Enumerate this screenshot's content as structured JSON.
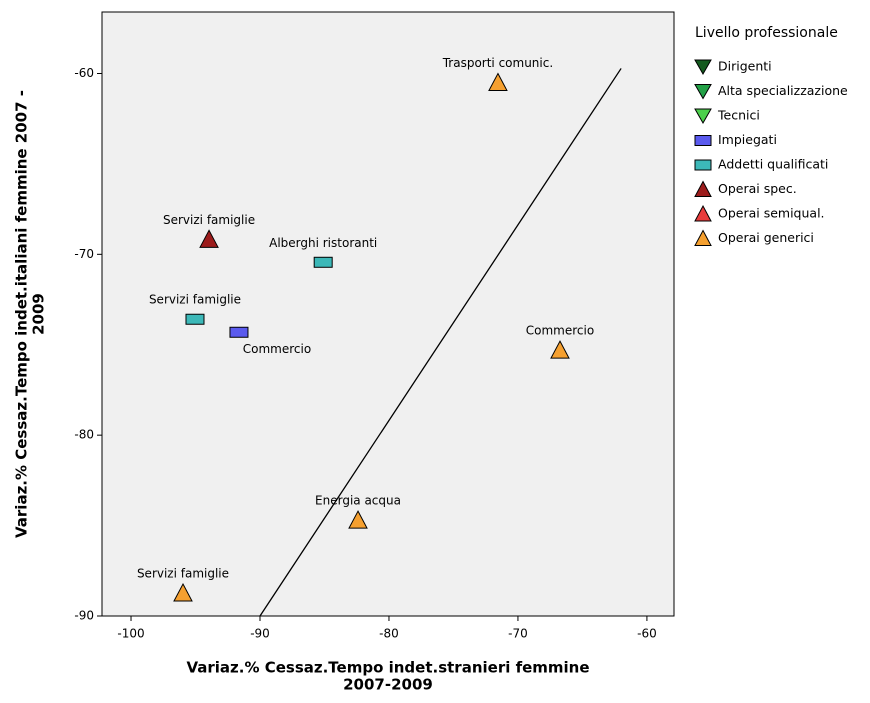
{
  "chart_data": {
    "type": "scatter",
    "xlabel": [
      "Variaz.% Cessaz.Tempo indet.stranieri femmine",
      "2007-2009"
    ],
    "ylabel": [
      "Variaz.% Cessaz.Tempo indet.italiani femmine 2007 -",
      "2009"
    ],
    "xlim": [
      -102.25,
      -57.9
    ],
    "ylim": [
      -90,
      -56.6
    ],
    "xticks": [
      -100,
      -90,
      -80,
      -70,
      -60
    ],
    "yticks": [
      -60,
      -70,
      -80,
      -90
    ],
    "legend_title": "Livello professionale",
    "legend_position": "right",
    "series": [
      {
        "name": "Dirigenti",
        "color": "#145a1e",
        "marker": "triangle-down",
        "x": [],
        "y": [],
        "labels": []
      },
      {
        "name": "Alta specializzazione",
        "color": "#22a046",
        "marker": "triangle-down",
        "x": [],
        "y": [],
        "labels": []
      },
      {
        "name": "Tecnici",
        "color": "#4cd04c",
        "marker": "triangle-down",
        "x": [],
        "y": [],
        "labels": []
      },
      {
        "name": "Impiegati",
        "color": "#5a5aee",
        "marker": "square",
        "x": [
          -91.63
        ],
        "y": [
          -74.31
        ],
        "labels": [
          "Commercio"
        ]
      },
      {
        "name": "Addetti qualificati",
        "color": "#3cb8b8",
        "marker": "square",
        "x": [
          -85.1,
          -95.04
        ],
        "y": [
          -70.44,
          -73.59
        ],
        "labels": [
          "Alberghi ristoranti",
          "Servizi famiglie"
        ]
      },
      {
        "name": "Operai spec.",
        "color": "#9c1c1c",
        "marker": "triangle",
        "x": [
          -93.95
        ],
        "y": [
          -69.17
        ],
        "labels": [
          "Servizi famiglie"
        ]
      },
      {
        "name": "Operai semiqual.",
        "color": "#e83c3c",
        "marker": "triangle",
        "x": [],
        "y": [],
        "labels": []
      },
      {
        "name": "Operai generici",
        "color": "#f5a030",
        "marker": "triangle",
        "x": [
          -71.55,
          -66.74,
          -82.4,
          -95.97
        ],
        "y": [
          -60.5,
          -75.3,
          -84.7,
          -88.73
        ],
        "labels": [
          "Trasporti comunic.",
          "Commercio",
          "Energia acqua",
          "Servizi famiglie"
        ]
      }
    ],
    "line": {
      "color": "#000000",
      "x": [
        -90,
        -62.0
      ],
      "y": [
        -90,
        -59.72
      ]
    }
  }
}
